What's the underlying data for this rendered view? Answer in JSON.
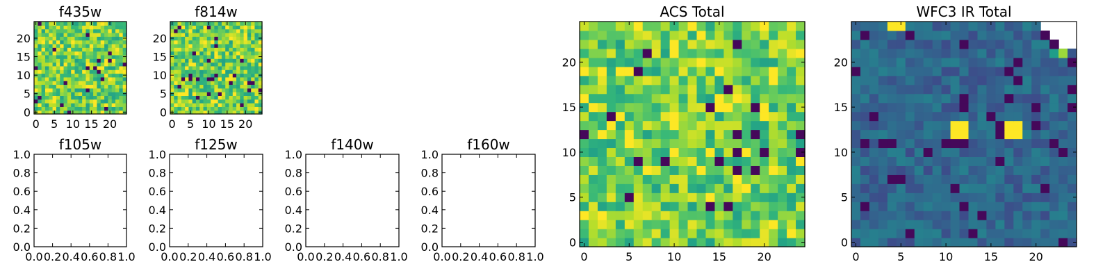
{
  "chart_data": [
    {
      "type": "heatmap",
      "title": "f435w",
      "grid_size": 25,
      "xticks": [
        "0",
        "5",
        "10",
        "15",
        "20"
      ],
      "yticks": [
        "0",
        "5",
        "10",
        "15",
        "20"
      ],
      "xlim": [
        -0.5,
        24.5
      ],
      "ylim": [
        -0.5,
        24.5
      ],
      "colormap": "viridis",
      "value_range": [
        0.45,
        1.0
      ]
    },
    {
      "type": "heatmap",
      "title": "f814w",
      "grid_size": 25,
      "xticks": [
        "0",
        "5",
        "10",
        "15",
        "20"
      ],
      "yticks": [
        "0",
        "5",
        "10",
        "15",
        "20"
      ],
      "xlim": [
        -0.5,
        24.5
      ],
      "ylim": [
        -0.5,
        24.5
      ],
      "colormap": "viridis",
      "value_range": [
        0.45,
        1.0
      ]
    },
    {
      "type": "empty",
      "title": "f105w",
      "xticks": [
        "0.0",
        "0.2",
        "0.4",
        "0.6",
        "0.8",
        "1.0"
      ],
      "yticks": [
        "0.0",
        "0.2",
        "0.4",
        "0.6",
        "0.8",
        "1.0"
      ],
      "xlim": [
        0,
        1
      ],
      "ylim": [
        0,
        1
      ]
    },
    {
      "type": "empty",
      "title": "f125w",
      "xticks": [
        "0.0",
        "0.2",
        "0.4",
        "0.6",
        "0.8",
        "1.0"
      ],
      "yticks": [
        "0.0",
        "0.2",
        "0.4",
        "0.6",
        "0.8",
        "1.0"
      ],
      "xlim": [
        0,
        1
      ],
      "ylim": [
        0,
        1
      ]
    },
    {
      "type": "empty",
      "title": "f140w",
      "xticks": [
        "0.0",
        "0.2",
        "0.4",
        "0.6",
        "0.8",
        "1.0"
      ],
      "yticks": [
        "0.0",
        "0.2",
        "0.4",
        "0.6",
        "0.8",
        "1.0"
      ],
      "xlim": [
        0,
        1
      ],
      "ylim": [
        0,
        1
      ]
    },
    {
      "type": "empty",
      "title": "f160w",
      "xticks": [
        "0.0",
        "0.2",
        "0.4",
        "0.6",
        "0.8",
        "1.0"
      ],
      "yticks": [
        "0.0",
        "0.2",
        "0.4",
        "0.6",
        "0.8",
        "1.0"
      ],
      "xlim": [
        0,
        1
      ],
      "ylim": [
        0,
        1
      ]
    },
    {
      "type": "heatmap",
      "title": "ACS Total",
      "grid_size": 25,
      "xticks": [
        "0",
        "5",
        "10",
        "15",
        "20"
      ],
      "yticks": [
        "0",
        "5",
        "10",
        "15",
        "20"
      ],
      "xlim": [
        -0.5,
        24.5
      ],
      "ylim": [
        -0.5,
        24.5
      ],
      "colormap": "viridis",
      "value_range": [
        0.5,
        1.0
      ]
    },
    {
      "type": "heatmap",
      "title": "WFC3 IR Total",
      "grid_size": 25,
      "xticks": [
        "0",
        "5",
        "10",
        "15",
        "20"
      ],
      "yticks": [
        "0",
        "5",
        "10",
        "15",
        "20"
      ],
      "xlim": [
        -0.5,
        24.5
      ],
      "ylim": [
        -0.5,
        24.5
      ],
      "colormap": "viridis",
      "value_range": [
        0.15,
        0.55
      ],
      "bright_pixels": [
        [
          11,
          12
        ],
        [
          12,
          12
        ],
        [
          11,
          13
        ],
        [
          12,
          13
        ],
        [
          17,
          12
        ],
        [
          18,
          12
        ],
        [
          17,
          13
        ],
        [
          18,
          13
        ],
        [
          4,
          24
        ],
        [
          5,
          24
        ]
      ],
      "blank_corner": "top-right"
    }
  ]
}
